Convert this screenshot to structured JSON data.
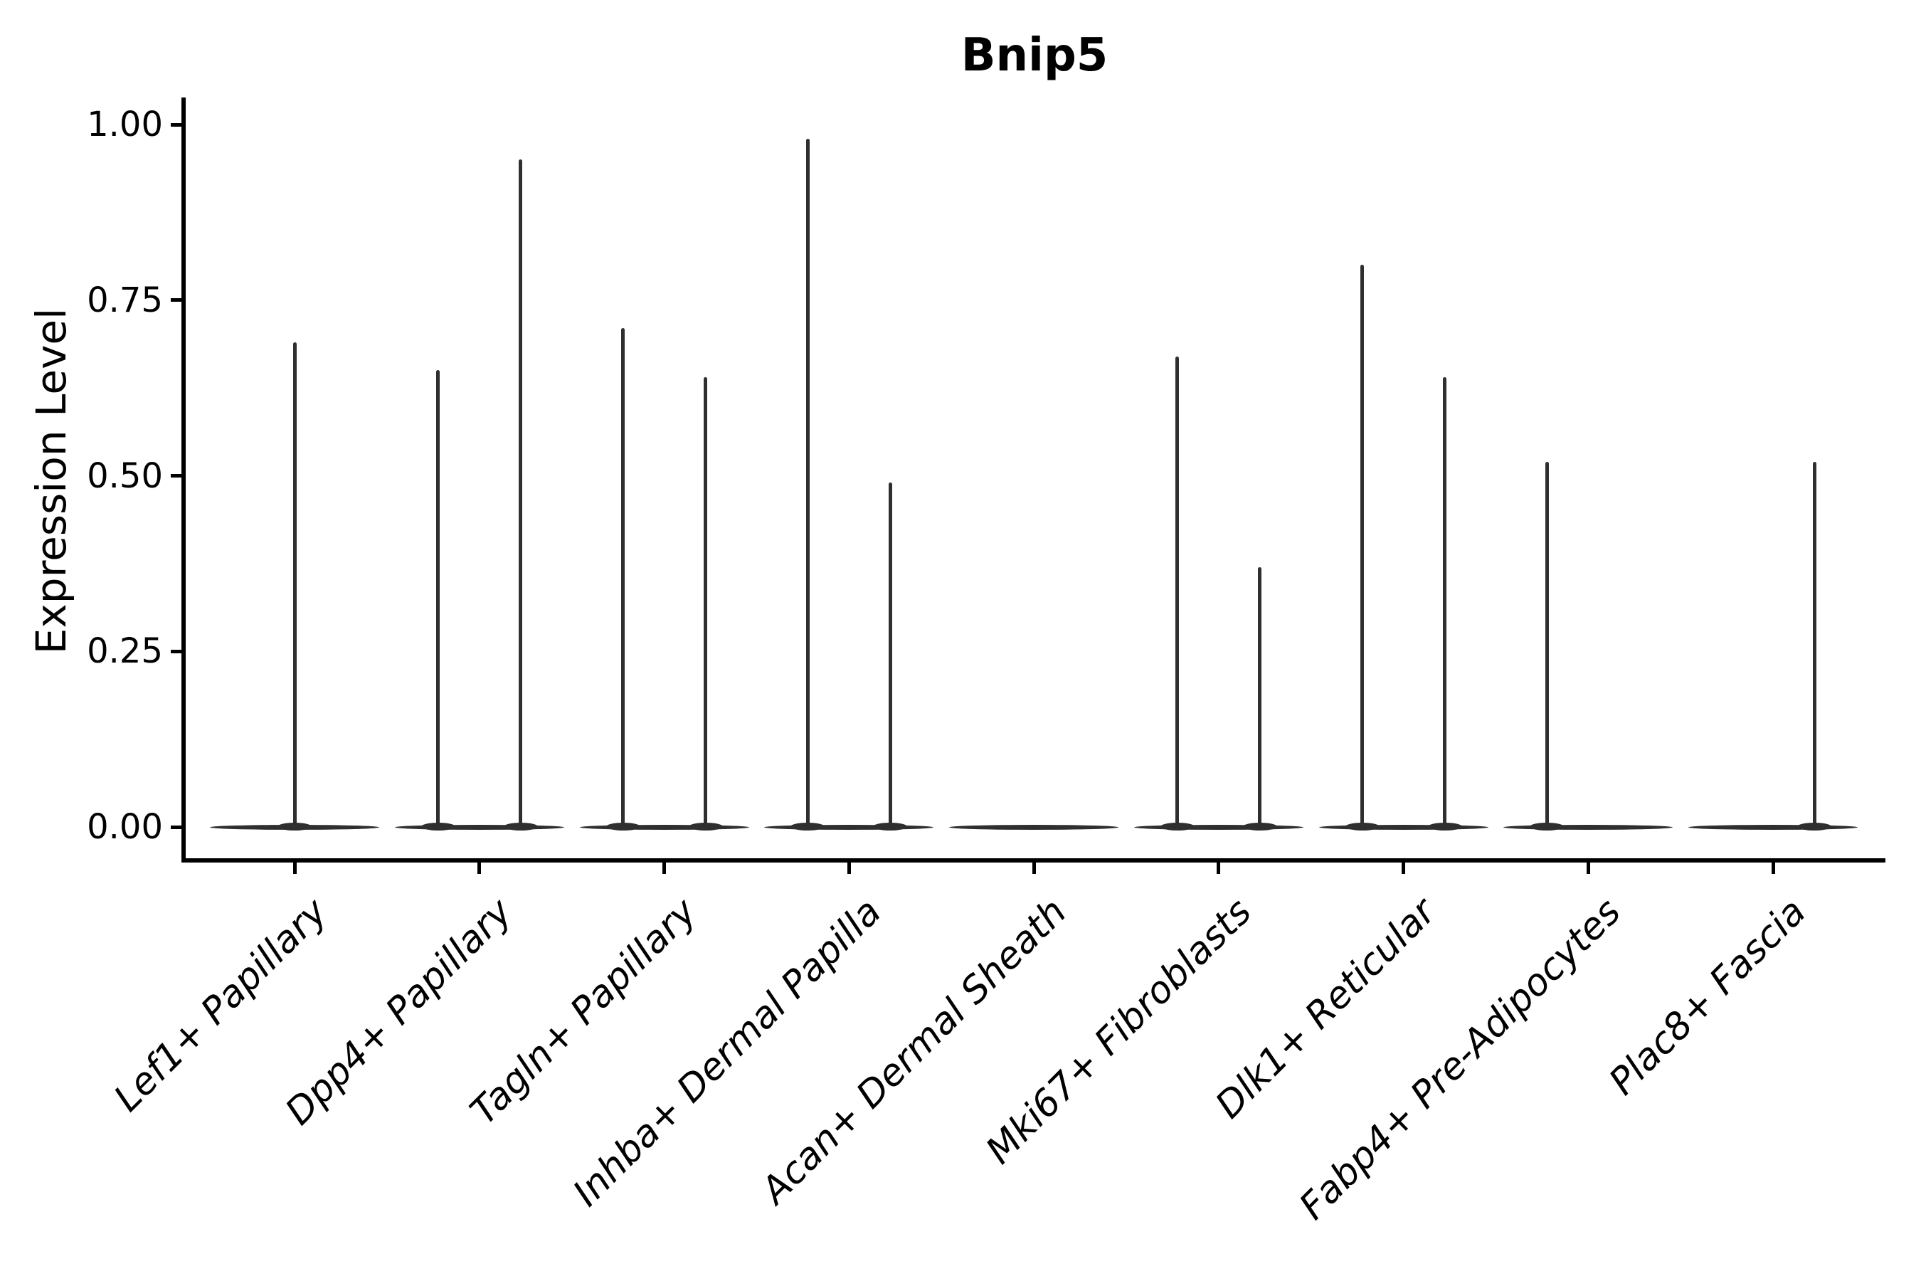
{
  "title": "Bnip5",
  "y_axis": {
    "label": "Expression Level",
    "ticks": [
      {
        "label": "1.00",
        "value": 1.0
      },
      {
        "label": "0.75",
        "value": 0.75
      },
      {
        "label": "0.50",
        "value": 0.5
      },
      {
        "label": "0.25",
        "value": 0.25
      },
      {
        "label": "0.00",
        "value": 0.0
      }
    ]
  },
  "chart_data": {
    "type": "violin",
    "title": "Bnip5",
    "xlabel": "",
    "ylabel": "Expression Level",
    "ylim": [
      0,
      1.05
    ],
    "grid": false,
    "legend": false,
    "categories": [
      "Lef1+ Papillary",
      "Dpp4+ Papillary",
      "Tagln+ Papillary",
      "Inhba+ Dermal Papilla",
      "Acan+ Dermal Sheath",
      "Mki67+ Fibroblasts",
      "Dlk1+ Reticular",
      "Fabp4+ Pre-Adipocytes",
      "Plac8+ Fascia"
    ],
    "violins": [
      {
        "category": "Lef1+ Papillary",
        "baseline_value": 0.0,
        "spikes": [
          {
            "position": "center",
            "max_value": 0.69
          }
        ]
      },
      {
        "category": "Dpp4+ Papillary",
        "baseline_value": 0.0,
        "spikes": [
          {
            "position": "left",
            "max_value": 0.65
          },
          {
            "position": "right",
            "max_value": 0.95
          }
        ]
      },
      {
        "category": "Tagln+ Papillary",
        "baseline_value": 0.0,
        "spikes": [
          {
            "position": "left",
            "max_value": 0.71
          },
          {
            "position": "right",
            "max_value": 0.64
          }
        ]
      },
      {
        "category": "Inhba+ Dermal Papilla",
        "baseline_value": 0.0,
        "spikes": [
          {
            "position": "left",
            "max_value": 0.98
          },
          {
            "position": "right",
            "max_value": 0.49
          }
        ]
      },
      {
        "category": "Acan+ Dermal Sheath",
        "baseline_value": 0.0,
        "spikes": []
      },
      {
        "category": "Mki67+ Fibroblasts",
        "baseline_value": 0.0,
        "spikes": [
          {
            "position": "left",
            "max_value": 0.67
          },
          {
            "position": "right",
            "max_value": 0.37
          }
        ]
      },
      {
        "category": "Dlk1+ Reticular",
        "baseline_value": 0.0,
        "spikes": [
          {
            "position": "left",
            "max_value": 0.8
          },
          {
            "position": "right",
            "max_value": 0.64
          }
        ]
      },
      {
        "category": "Fabp4+ Pre-Adipocytes",
        "baseline_value": 0.0,
        "spikes": [
          {
            "position": "left",
            "max_value": 0.52
          }
        ]
      },
      {
        "category": "Plac8+ Fascia",
        "baseline_value": 0.0,
        "spikes": [
          {
            "position": "right",
            "max_value": 0.52
          }
        ]
      }
    ],
    "colors": {
      "violin_line": "#2f2f2f",
      "axis": "#000000",
      "text": "#000000",
      "background": "#ffffff"
    }
  }
}
